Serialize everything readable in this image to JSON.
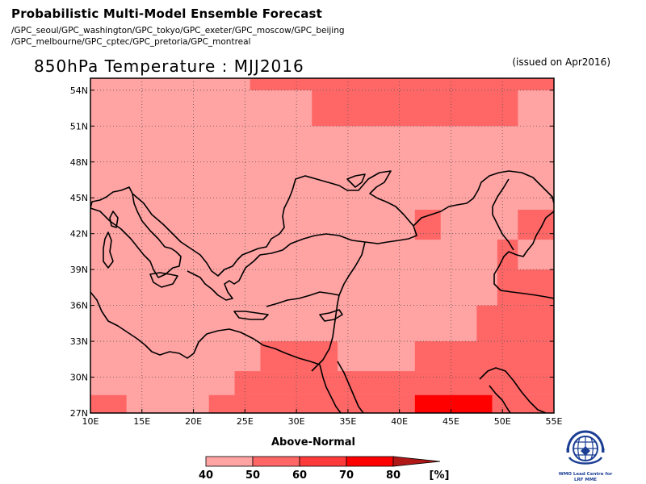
{
  "header": {
    "title": "Probabilistic Multi-Model Ensemble Forecast",
    "members_line1": "/GPC_seoul/GPC_washington/GPC_tokyo/GPC_exeter/GPC_moscow/GPC_beijing",
    "members_line2": "/GPC_melbourne/GPC_cptec/GPC_pretoria/GPC_montreal",
    "variable_title": "850hPa Temperature : MJJ2016",
    "issued": "(issued on Apr2016)"
  },
  "map": {
    "lon_range": [
      10,
      55
    ],
    "lat_range": [
      27,
      55
    ],
    "lon_ticks": [
      "10E",
      "15E",
      "20E",
      "25E",
      "30E",
      "35E",
      "40E",
      "45E",
      "50E",
      "55E"
    ],
    "lat_ticks": [
      "27N",
      "30N",
      "33N",
      "36N",
      "39N",
      "42N",
      "45N",
      "48N",
      "51N",
      "54N"
    ],
    "grid": true,
    "grid_style": "dotted",
    "base_category": "40-50",
    "regions": [
      {
        "category": "50-60",
        "lon": [
          25.5,
          55
        ],
        "lat": [
          54,
          55
        ]
      },
      {
        "category": "50-60",
        "lon": [
          31.5,
          51.5
        ],
        "lat": [
          51,
          54
        ]
      },
      {
        "category": "50-60",
        "lon": [
          41.5,
          44
        ],
        "lat": [
          41.5,
          44
        ]
      },
      {
        "category": "50-60",
        "lon": [
          51.5,
          55
        ],
        "lat": [
          41.5,
          44
        ]
      },
      {
        "category": "50-60",
        "lon": [
          49.5,
          51.5
        ],
        "lat": [
          39,
          41.5
        ]
      },
      {
        "category": "50-60",
        "lon": [
          49.5,
          55
        ],
        "lat": [
          36,
          39
        ]
      },
      {
        "category": "50-60",
        "lon": [
          47.5,
          55
        ],
        "lat": [
          33,
          36
        ]
      },
      {
        "category": "50-60",
        "lon": [
          41.5,
          55
        ],
        "lat": [
          30.5,
          33
        ]
      },
      {
        "category": "50-60",
        "lon": [
          26.5,
          34
        ],
        "lat": [
          30.5,
          33
        ]
      },
      {
        "category": "50-60",
        "lon": [
          24,
          55
        ],
        "lat": [
          28.5,
          30.5
        ]
      },
      {
        "category": "50-60",
        "lon": [
          21.5,
          55
        ],
        "lat": [
          27,
          28.5
        ]
      },
      {
        "category": "50-60",
        "lon": [
          10,
          13.5
        ],
        "lat": [
          27,
          28.5
        ]
      },
      {
        "category": "70-80",
        "lon": [
          41.5,
          49
        ],
        "lat": [
          27,
          28.5
        ]
      }
    ]
  },
  "legend": {
    "title": "Above-Normal",
    "categories": [
      {
        "id": "40-50",
        "color": "#ffa3a3"
      },
      {
        "id": "50-60",
        "color": "#ff6666"
      },
      {
        "id": "60-70",
        "color": "#ff3a3a"
      },
      {
        "id": "70-80",
        "color": "#ff0000"
      },
      {
        "id": "80+",
        "color": "#b01818"
      }
    ],
    "labels": [
      "40",
      "50",
      "60",
      "70",
      "80"
    ],
    "unit": "[%]"
  },
  "logo": {
    "line1": "WMO Lead Centre for",
    "line2": "LRF MME"
  }
}
